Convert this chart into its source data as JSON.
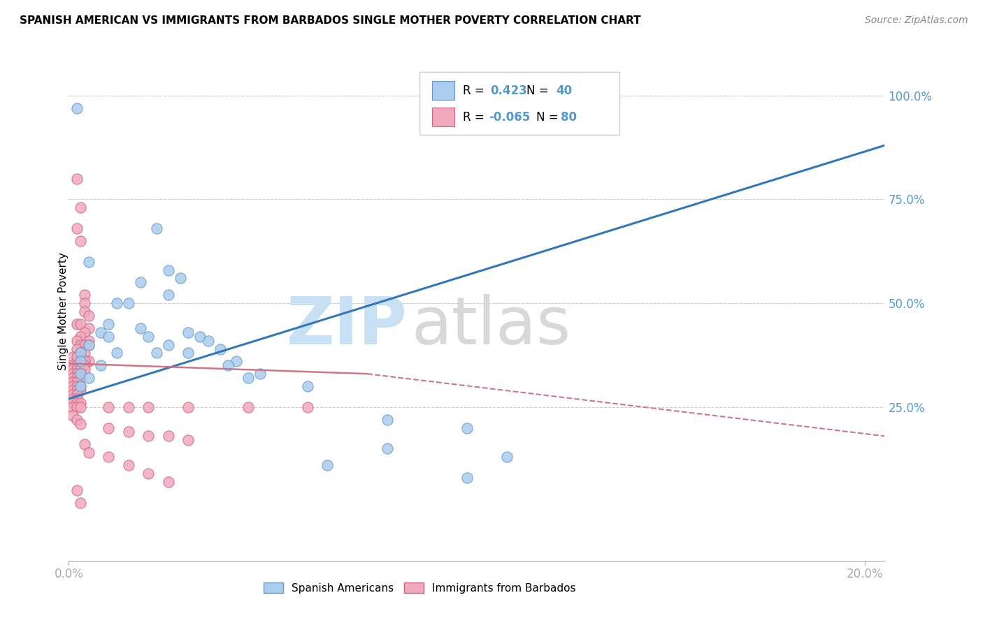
{
  "title": "SPANISH AMERICAN VS IMMIGRANTS FROM BARBADOS SINGLE MOTHER POVERTY CORRELATION CHART",
  "source": "Source: ZipAtlas.com",
  "ylabel": "Single Mother Poverty",
  "yticks": [
    "100.0%",
    "75.0%",
    "50.0%",
    "25.0%"
  ],
  "ytick_vals": [
    1.0,
    0.75,
    0.5,
    0.25
  ],
  "xlim": [
    0.0,
    0.205
  ],
  "ylim": [
    -0.12,
    1.08
  ],
  "legend_blue_R": "R =  0.423",
  "legend_blue_N": "N = 40",
  "legend_pink_R": "R = -0.065",
  "legend_pink_N": "N = 80",
  "blue_color": "#aaccee",
  "blue_edge_color": "#6699cc",
  "pink_color": "#f0aabc",
  "pink_edge_color": "#cc6688",
  "blue_line_color": "#3377bb",
  "pink_line_color": "#cc7788",
  "watermark_zip_color": "#c8e0f4",
  "watermark_atlas_color": "#d8d8d8",
  "grid_color": "#cccccc",
  "tick_color": "#5599cc",
  "blue_line": [
    [
      0.0,
      0.27
    ],
    [
      0.205,
      0.88
    ]
  ],
  "pink_line_solid": [
    [
      0.0,
      0.355
    ],
    [
      0.075,
      0.33
    ]
  ],
  "pink_line_dash": [
    [
      0.075,
      0.33
    ],
    [
      0.205,
      0.18
    ]
  ],
  "blue_points": [
    [
      0.002,
      0.97
    ],
    [
      0.022,
      0.68
    ],
    [
      0.005,
      0.6
    ],
    [
      0.025,
      0.58
    ],
    [
      0.028,
      0.56
    ],
    [
      0.018,
      0.55
    ],
    [
      0.025,
      0.52
    ],
    [
      0.012,
      0.5
    ],
    [
      0.015,
      0.5
    ],
    [
      0.01,
      0.45
    ],
    [
      0.018,
      0.44
    ],
    [
      0.008,
      0.43
    ],
    [
      0.03,
      0.43
    ],
    [
      0.01,
      0.42
    ],
    [
      0.02,
      0.42
    ],
    [
      0.033,
      0.42
    ],
    [
      0.035,
      0.41
    ],
    [
      0.005,
      0.4
    ],
    [
      0.025,
      0.4
    ],
    [
      0.038,
      0.39
    ],
    [
      0.003,
      0.38
    ],
    [
      0.012,
      0.38
    ],
    [
      0.022,
      0.38
    ],
    [
      0.03,
      0.38
    ],
    [
      0.003,
      0.36
    ],
    [
      0.042,
      0.36
    ],
    [
      0.008,
      0.35
    ],
    [
      0.04,
      0.35
    ],
    [
      0.003,
      0.33
    ],
    [
      0.048,
      0.33
    ],
    [
      0.005,
      0.32
    ],
    [
      0.045,
      0.32
    ],
    [
      0.003,
      0.3
    ],
    [
      0.06,
      0.3
    ],
    [
      0.08,
      0.22
    ],
    [
      0.1,
      0.2
    ],
    [
      0.08,
      0.15
    ],
    [
      0.11,
      0.13
    ],
    [
      0.065,
      0.11
    ],
    [
      0.1,
      0.08
    ]
  ],
  "pink_points": [
    [
      0.002,
      0.8
    ],
    [
      0.003,
      0.73
    ],
    [
      0.002,
      0.68
    ],
    [
      0.003,
      0.65
    ],
    [
      0.004,
      0.52
    ],
    [
      0.004,
      0.5
    ],
    [
      0.004,
      0.48
    ],
    [
      0.005,
      0.47
    ],
    [
      0.002,
      0.45
    ],
    [
      0.003,
      0.45
    ],
    [
      0.005,
      0.44
    ],
    [
      0.004,
      0.43
    ],
    [
      0.003,
      0.42
    ],
    [
      0.002,
      0.41
    ],
    [
      0.005,
      0.41
    ],
    [
      0.003,
      0.4
    ],
    [
      0.004,
      0.4
    ],
    [
      0.005,
      0.4
    ],
    [
      0.002,
      0.39
    ],
    [
      0.003,
      0.38
    ],
    [
      0.004,
      0.38
    ],
    [
      0.001,
      0.37
    ],
    [
      0.002,
      0.37
    ],
    [
      0.003,
      0.36
    ],
    [
      0.005,
      0.36
    ],
    [
      0.004,
      0.36
    ],
    [
      0.001,
      0.35
    ],
    [
      0.002,
      0.35
    ],
    [
      0.003,
      0.35
    ],
    [
      0.004,
      0.35
    ],
    [
      0.001,
      0.34
    ],
    [
      0.002,
      0.34
    ],
    [
      0.003,
      0.34
    ],
    [
      0.004,
      0.34
    ],
    [
      0.001,
      0.33
    ],
    [
      0.002,
      0.33
    ],
    [
      0.003,
      0.33
    ],
    [
      0.001,
      0.32
    ],
    [
      0.002,
      0.32
    ],
    [
      0.003,
      0.32
    ],
    [
      0.001,
      0.31
    ],
    [
      0.002,
      0.31
    ],
    [
      0.001,
      0.3
    ],
    [
      0.002,
      0.3
    ],
    [
      0.003,
      0.3
    ],
    [
      0.001,
      0.29
    ],
    [
      0.002,
      0.29
    ],
    [
      0.003,
      0.29
    ],
    [
      0.001,
      0.28
    ],
    [
      0.002,
      0.28
    ],
    [
      0.001,
      0.27
    ],
    [
      0.002,
      0.27
    ],
    [
      0.001,
      0.26
    ],
    [
      0.002,
      0.26
    ],
    [
      0.003,
      0.26
    ],
    [
      0.001,
      0.25
    ],
    [
      0.002,
      0.25
    ],
    [
      0.003,
      0.25
    ],
    [
      0.01,
      0.25
    ],
    [
      0.015,
      0.25
    ],
    [
      0.02,
      0.25
    ],
    [
      0.03,
      0.25
    ],
    [
      0.045,
      0.25
    ],
    [
      0.06,
      0.25
    ],
    [
      0.001,
      0.23
    ],
    [
      0.002,
      0.22
    ],
    [
      0.003,
      0.21
    ],
    [
      0.01,
      0.2
    ],
    [
      0.015,
      0.19
    ],
    [
      0.02,
      0.18
    ],
    [
      0.025,
      0.18
    ],
    [
      0.03,
      0.17
    ],
    [
      0.004,
      0.16
    ],
    [
      0.005,
      0.14
    ],
    [
      0.01,
      0.13
    ],
    [
      0.015,
      0.11
    ],
    [
      0.02,
      0.09
    ],
    [
      0.025,
      0.07
    ],
    [
      0.002,
      0.05
    ],
    [
      0.003,
      0.02
    ]
  ]
}
